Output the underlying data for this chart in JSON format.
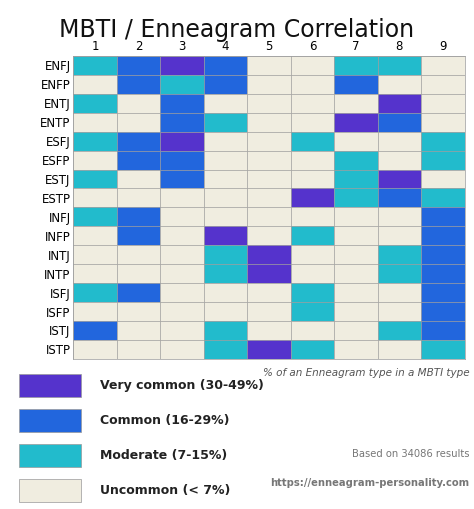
{
  "title": "MBTI / Enneagram Correlation",
  "mbti_types": [
    "ENFJ",
    "ENFP",
    "ENTJ",
    "ENTP",
    "ESFJ",
    "ESFP",
    "ESTJ",
    "ESTP",
    "INFJ",
    "INFP",
    "INTJ",
    "INTP",
    "ISFJ",
    "ISFP",
    "ISTJ",
    "ISTP"
  ],
  "enneagram": [
    "1",
    "2",
    "3",
    "4",
    "5",
    "6",
    "7",
    "8",
    "9"
  ],
  "colors": {
    "very_common": "#5533cc",
    "common": "#2266dd",
    "moderate": "#22bbcc",
    "uncommon": "#f0ede0"
  },
  "legend": [
    {
      "label": "Very common (30-49%)",
      "color": "#5533cc"
    },
    {
      "label": "Common (16-29%)",
      "color": "#2266dd"
    },
    {
      "label": "Moderate (7-15%)",
      "color": "#22bbcc"
    },
    {
      "label": "Uncommon (< 7%)",
      "color": "#f0ede0"
    }
  ],
  "note": "% of an Enneagram type in a MBTI type",
  "source_line1": "Based on 34086 results",
  "source_line2": "https://enneagram-personality.com",
  "grid": [
    [
      "M",
      "C",
      "V",
      "C",
      "U",
      "U",
      "M",
      "M",
      "U"
    ],
    [
      "U",
      "C",
      "M",
      "C",
      "U",
      "U",
      "C",
      "U",
      "U"
    ],
    [
      "M",
      "U",
      "C",
      "U",
      "U",
      "U",
      "U",
      "V",
      "U"
    ],
    [
      "U",
      "U",
      "C",
      "M",
      "U",
      "U",
      "V",
      "C",
      "U"
    ],
    [
      "M",
      "C",
      "V",
      "U",
      "U",
      "M",
      "U",
      "U",
      "M"
    ],
    [
      "U",
      "C",
      "C",
      "U",
      "U",
      "U",
      "M",
      "U",
      "M"
    ],
    [
      "M",
      "U",
      "C",
      "U",
      "U",
      "U",
      "M",
      "V",
      "U"
    ],
    [
      "U",
      "U",
      "U",
      "U",
      "U",
      "V",
      "M",
      "C",
      "M"
    ],
    [
      "M",
      "C",
      "U",
      "U",
      "U",
      "U",
      "U",
      "U",
      "C"
    ],
    [
      "U",
      "C",
      "U",
      "V",
      "U",
      "M",
      "U",
      "U",
      "C"
    ],
    [
      "U",
      "U",
      "U",
      "M",
      "V",
      "U",
      "U",
      "M",
      "C"
    ],
    [
      "U",
      "U",
      "U",
      "M",
      "V",
      "U",
      "U",
      "M",
      "C"
    ],
    [
      "M",
      "C",
      "U",
      "U",
      "U",
      "M",
      "U",
      "U",
      "C"
    ],
    [
      "U",
      "U",
      "U",
      "U",
      "U",
      "M",
      "U",
      "U",
      "C"
    ],
    [
      "C",
      "U",
      "U",
      "M",
      "U",
      "U",
      "U",
      "M",
      "C"
    ],
    [
      "U",
      "U",
      "U",
      "M",
      "V",
      "M",
      "U",
      "U",
      "M"
    ]
  ],
  "background_color": "#ffffff",
  "cell_border_color": "#999999",
  "title_fontsize": 17,
  "axis_fontsize": 8.5
}
